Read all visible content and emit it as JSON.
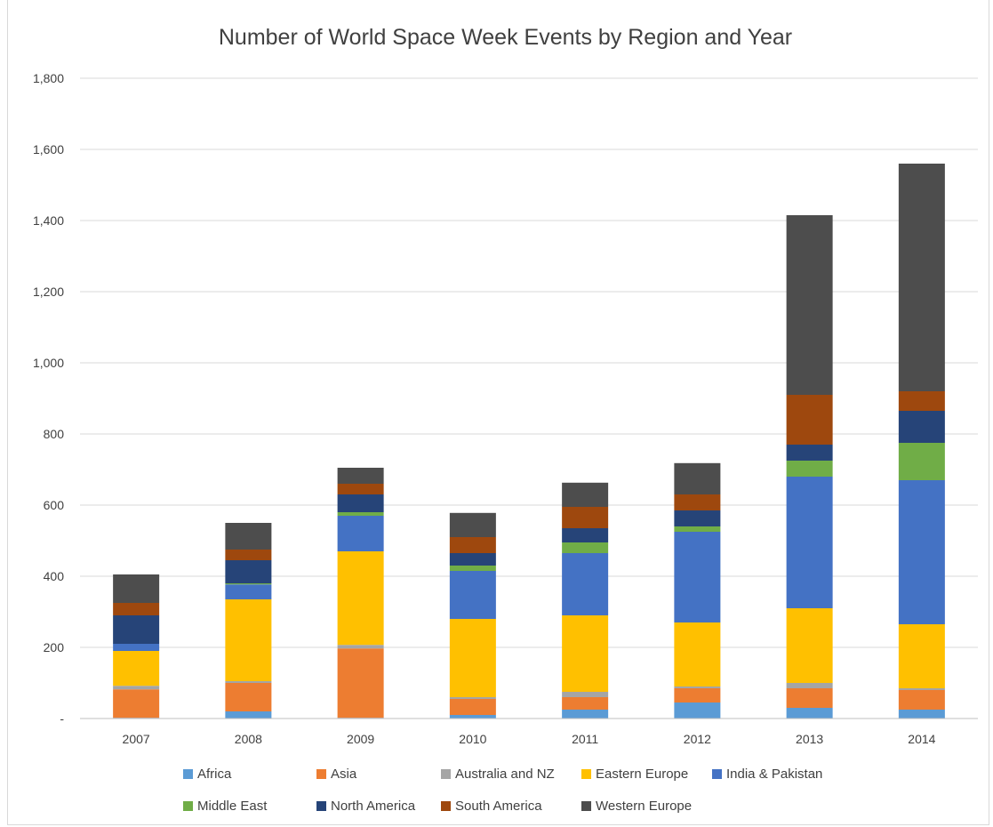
{
  "chart_data": {
    "type": "bar",
    "stacked": true,
    "title": "Number of World Space Week Events by Region and Year",
    "xlabel": "",
    "ylabel": "",
    "ylim": [
      0,
      1800
    ],
    "y_ticks": [
      "-",
      "200",
      "400",
      "600",
      "800",
      "1,000",
      "1,200",
      "1,400",
      "1,600",
      "1,800"
    ],
    "grid": true,
    "legend_position": "bottom",
    "categories": [
      "2007",
      "2008",
      "2009",
      "2010",
      "2011",
      "2012",
      "2013",
      "2014"
    ],
    "series": [
      {
        "name": "Africa",
        "color": "#5b9bd5",
        "values": [
          2,
          20,
          2,
          10,
          25,
          45,
          30,
          25
        ]
      },
      {
        "name": "Asia",
        "color": "#ed7d31",
        "values": [
          80,
          80,
          195,
          45,
          35,
          40,
          55,
          55
        ]
      },
      {
        "name": "Australia and NZ",
        "color": "#a5a5a5",
        "values": [
          10,
          5,
          10,
          5,
          15,
          5,
          15,
          5
        ]
      },
      {
        "name": "Eastern Europe",
        "color": "#ffc000",
        "values": [
          98,
          230,
          263,
          220,
          215,
          180,
          210,
          180
        ]
      },
      {
        "name": "India & Pakistan",
        "color": "#4472c4",
        "values": [
          20,
          42,
          100,
          135,
          175,
          255,
          370,
          405
        ]
      },
      {
        "name": "Middle East",
        "color": "#70ad47",
        "values": [
          0,
          3,
          10,
          15,
          30,
          15,
          45,
          105
        ]
      },
      {
        "name": "North America",
        "color": "#264478",
        "values": [
          80,
          65,
          50,
          35,
          40,
          45,
          45,
          90
        ]
      },
      {
        "name": "South America",
        "color": "#9e480e",
        "values": [
          35,
          30,
          30,
          45,
          60,
          45,
          140,
          55
        ]
      },
      {
        "name": "Western Europe",
        "color": "#4d4d4d",
        "values": [
          80,
          75,
          45,
          68,
          68,
          88,
          505,
          640
        ]
      }
    ]
  }
}
